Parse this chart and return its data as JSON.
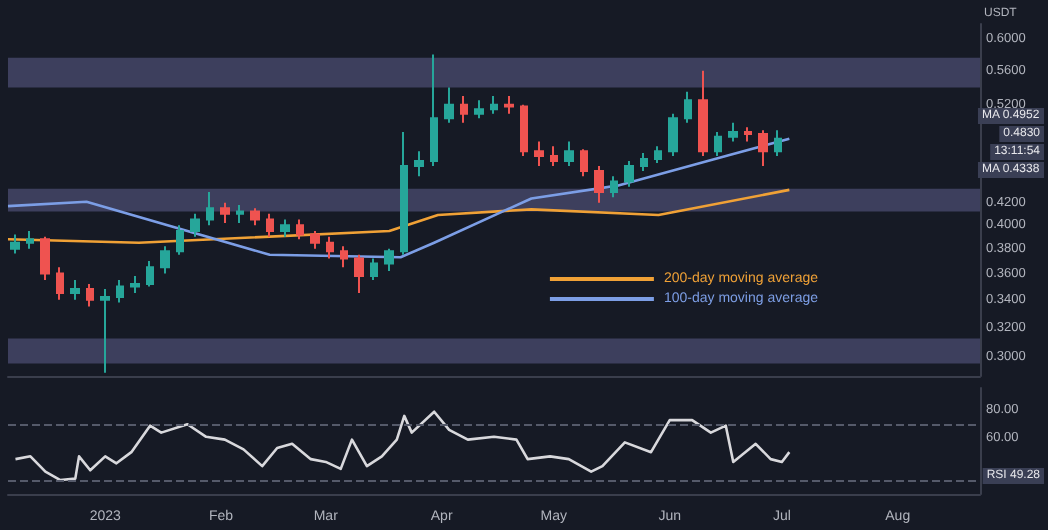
{
  "chart_data": [
    {
      "type": "candlestick",
      "ylabel": "USDT",
      "log": true,
      "xlim": [
        "2022-12-06",
        "2023-08-23"
      ],
      "ylim": [
        0.288,
        0.62
      ],
      "yticks": [
        {
          "value": 0.6,
          "label": "0.6000"
        },
        {
          "value": 0.56,
          "label": "0.5600"
        },
        {
          "value": 0.52,
          "label": "0.5200"
        },
        {
          "value": 0.42,
          "label": "0.4200"
        },
        {
          "value": 0.4,
          "label": "0.4000"
        },
        {
          "value": 0.38,
          "label": "0.3800"
        },
        {
          "value": 0.36,
          "label": "0.3600"
        },
        {
          "value": 0.34,
          "label": "0.3400"
        },
        {
          "value": 0.32,
          "label": "0.3200"
        },
        {
          "value": 0.3,
          "label": "0.3000"
        }
      ],
      "tick_labels": "y",
      "legend": "bottom right",
      "x": [
        "2022-12-08",
        "2022-12-12",
        "2022-12-16",
        "2022-12-20",
        "2022-12-24",
        "2022-12-28",
        "2023-01-01",
        "2023-01-05",
        "2023-01-09",
        "2023-01-13",
        "2023-01-17",
        "2023-01-21",
        "2023-01-25",
        "2023-01-29",
        "2023-02-02",
        "2023-02-06",
        "2023-02-10",
        "2023-02-14",
        "2023-02-18",
        "2023-02-22",
        "2023-02-26",
        "2023-03-02",
        "2023-03-06",
        "2023-03-10",
        "2023-03-14",
        "2023-03-18",
        "2023-03-22",
        "2023-03-26",
        "2023-03-30",
        "2023-04-03",
        "2023-04-07",
        "2023-04-11",
        "2023-04-15",
        "2023-04-19",
        "2023-04-23",
        "2023-04-27",
        "2023-05-01",
        "2023-05-05",
        "2023-05-09",
        "2023-05-13",
        "2023-05-17",
        "2023-05-21",
        "2023-05-25",
        "2023-05-29",
        "2023-06-02",
        "2023-06-06",
        "2023-06-10",
        "2023-06-14",
        "2023-06-18",
        "2023-06-22",
        "2023-06-26",
        "2023-06-30"
      ],
      "ohlc": [
        [
          0.38,
          0.392,
          0.376,
          0.385
        ],
        [
          0.385,
          0.395,
          0.38,
          0.388
        ],
        [
          0.388,
          0.39,
          0.355,
          0.36
        ],
        [
          0.36,
          0.365,
          0.34,
          0.345
        ],
        [
          0.345,
          0.355,
          0.34,
          0.348
        ],
        [
          0.348,
          0.352,
          0.335,
          0.34
        ],
        [
          0.34,
          0.348,
          0.29,
          0.342
        ],
        [
          0.342,
          0.355,
          0.338,
          0.35
        ],
        [
          0.35,
          0.358,
          0.345,
          0.352
        ],
        [
          0.352,
          0.37,
          0.35,
          0.365
        ],
        [
          0.365,
          0.382,
          0.36,
          0.378
        ],
        [
          0.378,
          0.4,
          0.375,
          0.395
        ],
        [
          0.395,
          0.41,
          0.39,
          0.405
        ],
        [
          0.405,
          0.43,
          0.4,
          0.415
        ],
        [
          0.415,
          0.42,
          0.402,
          0.41
        ],
        [
          0.41,
          0.418,
          0.402,
          0.412
        ],
        [
          0.412,
          0.415,
          0.4,
          0.405
        ],
        [
          0.405,
          0.41,
          0.39,
          0.395
        ],
        [
          0.395,
          0.405,
          0.39,
          0.4
        ],
        [
          0.4,
          0.405,
          0.388,
          0.392
        ],
        [
          0.392,
          0.395,
          0.38,
          0.385
        ],
        [
          0.385,
          0.39,
          0.372,
          0.378
        ],
        [
          0.378,
          0.382,
          0.365,
          0.372
        ],
        [
          0.372,
          0.375,
          0.345,
          0.358
        ],
        [
          0.358,
          0.372,
          0.355,
          0.368
        ],
        [
          0.368,
          0.38,
          0.362,
          0.378
        ],
        [
          0.378,
          0.49,
          0.375,
          0.455
        ],
        [
          0.455,
          0.47,
          0.445,
          0.46
        ],
        [
          0.46,
          0.58,
          0.455,
          0.505
        ],
        [
          0.505,
          0.54,
          0.5,
          0.52
        ],
        [
          0.52,
          0.53,
          0.5,
          0.51
        ],
        [
          0.51,
          0.525,
          0.505,
          0.515
        ],
        [
          0.515,
          0.53,
          0.51,
          0.52
        ],
        [
          0.52,
          0.53,
          0.51,
          0.518
        ],
        [
          0.518,
          0.52,
          0.465,
          0.47
        ],
        [
          0.47,
          0.48,
          0.455,
          0.465
        ],
        [
          0.465,
          0.475,
          0.455,
          0.46
        ],
        [
          0.46,
          0.48,
          0.455,
          0.47
        ],
        [
          0.47,
          0.472,
          0.445,
          0.45
        ],
        [
          0.45,
          0.455,
          0.42,
          0.43
        ],
        [
          0.43,
          0.445,
          0.425,
          0.44
        ],
        [
          0.44,
          0.46,
          0.435,
          0.455
        ],
        [
          0.455,
          0.468,
          0.45,
          0.462
        ],
        [
          0.462,
          0.475,
          0.458,
          0.47
        ],
        [
          0.47,
          0.51,
          0.465,
          0.505
        ],
        [
          0.505,
          0.535,
          0.5,
          0.525
        ],
        [
          0.525,
          0.56,
          0.465,
          0.47
        ],
        [
          0.47,
          0.49,
          0.465,
          0.485
        ],
        [
          0.485,
          0.5,
          0.48,
          0.49
        ],
        [
          0.49,
          0.495,
          0.48,
          0.488
        ],
        [
          0.488,
          0.492,
          0.455,
          0.47
        ],
        [
          0.47,
          0.492,
          0.465,
          0.483
        ]
      ],
      "series": [
        {
          "type": "line",
          "name": "200-day moving average",
          "color": "#f0a136",
          "x": [
            "2022-12-06",
            "2023-01-10",
            "2023-03-18",
            "2023-03-31",
            "2023-04-25",
            "2023-05-29",
            "2023-07-03"
          ],
          "values": [
            0.388,
            0.385,
            0.395,
            0.409,
            0.414,
            0.409,
            0.432
          ]
        },
        {
          "type": "line",
          "name": "100-day moving average",
          "color": "#7c9ee6",
          "x": [
            "2022-12-06",
            "2022-12-27",
            "2023-02-14",
            "2023-03-21",
            "2023-03-30",
            "2023-04-25",
            "2023-05-18",
            "2023-06-17",
            "2023-07-03"
          ],
          "values": [
            0.417,
            0.421,
            0.375,
            0.373,
            0.385,
            0.424,
            0.436,
            0.466,
            0.483
          ]
        }
      ],
      "bands": [
        {
          "axis": "y",
          "from": 0.54,
          "to": 0.576,
          "color": "#4b4c70"
        },
        {
          "axis": "y",
          "from": 0.412,
          "to": 0.433,
          "color": "#4b4c70"
        },
        {
          "axis": "y",
          "from": 0.296,
          "to": 0.3125,
          "color": "#4b4c70"
        }
      ],
      "annotations": [
        "MA 0.4952",
        "0.4830",
        "13:11:54",
        "MA 0.4338"
      ]
    },
    {
      "type": "line",
      "xlim": [
        "2022-12-06",
        "2023-08-23"
      ],
      "ylim": [
        20,
        96
      ],
      "yticks": [
        {
          "value": 80,
          "label": "80.00"
        },
        {
          "value": 60,
          "label": "60.00"
        }
      ],
      "xticks": [
        {
          "value": "2023-01-01",
          "label": "2023"
        },
        {
          "value": "2023-02-01",
          "label": "Feb"
        },
        {
          "value": "2023-03-01",
          "label": "Mar"
        },
        {
          "value": "2023-04-01",
          "label": "Apr"
        },
        {
          "value": "2023-05-01",
          "label": "May"
        },
        {
          "value": "2023-06-01",
          "label": "Jun"
        },
        {
          "value": "2023-07-01",
          "label": "Jul"
        },
        {
          "value": "2023-08-01",
          "label": "Aug"
        }
      ],
      "ref_lines": [
        {
          "axis": "y",
          "value": 70,
          "line_style": "dashed",
          "color": "#555a6a"
        },
        {
          "axis": "y",
          "value": 30,
          "line_style": "dashed",
          "color": "#555a6a"
        }
      ],
      "series": [
        {
          "color": "#d8d8dc",
          "x": [
            "2022-12-08",
            "2022-12-12",
            "2022-12-16",
            "2022-12-20",
            "2022-12-24",
            "2022-12-25",
            "2022-12-28",
            "2023-01-01",
            "2023-01-04",
            "2023-01-08",
            "2023-01-13",
            "2023-01-16",
            "2023-01-23",
            "2023-01-28",
            "2023-02-02",
            "2023-02-07",
            "2023-02-12",
            "2023-02-16",
            "2023-02-20",
            "2023-02-25",
            "2023-03-01",
            "2023-03-05",
            "2023-03-08",
            "2023-03-12",
            "2023-03-16",
            "2023-03-20",
            "2023-03-22",
            "2023-03-24",
            "2023-03-30",
            "2023-04-03",
            "2023-04-08",
            "2023-04-15",
            "2023-04-21",
            "2023-04-24",
            "2023-04-30",
            "2023-05-05",
            "2023-05-11",
            "2023-05-14",
            "2023-05-20",
            "2023-05-27",
            "2023-06-01",
            "2023-06-07",
            "2023-06-12",
            "2023-06-16",
            "2023-06-18",
            "2023-06-24",
            "2023-06-28",
            "2023-07-01",
            "2023-07-03"
          ],
          "values": [
            45,
            47,
            36,
            30,
            31,
            47,
            37,
            47,
            42,
            50,
            69,
            64,
            70,
            61,
            59,
            52,
            40,
            53,
            56,
            45,
            43,
            38,
            59,
            40,
            47,
            59,
            76,
            64,
            79,
            66,
            59,
            61,
            59,
            45,
            47,
            45,
            36,
            40,
            57,
            50,
            73,
            73,
            64,
            69,
            43,
            56,
            45,
            43,
            50
          ]
        }
      ],
      "annotations": [
        "RSI 49.28"
      ]
    }
  ]
}
